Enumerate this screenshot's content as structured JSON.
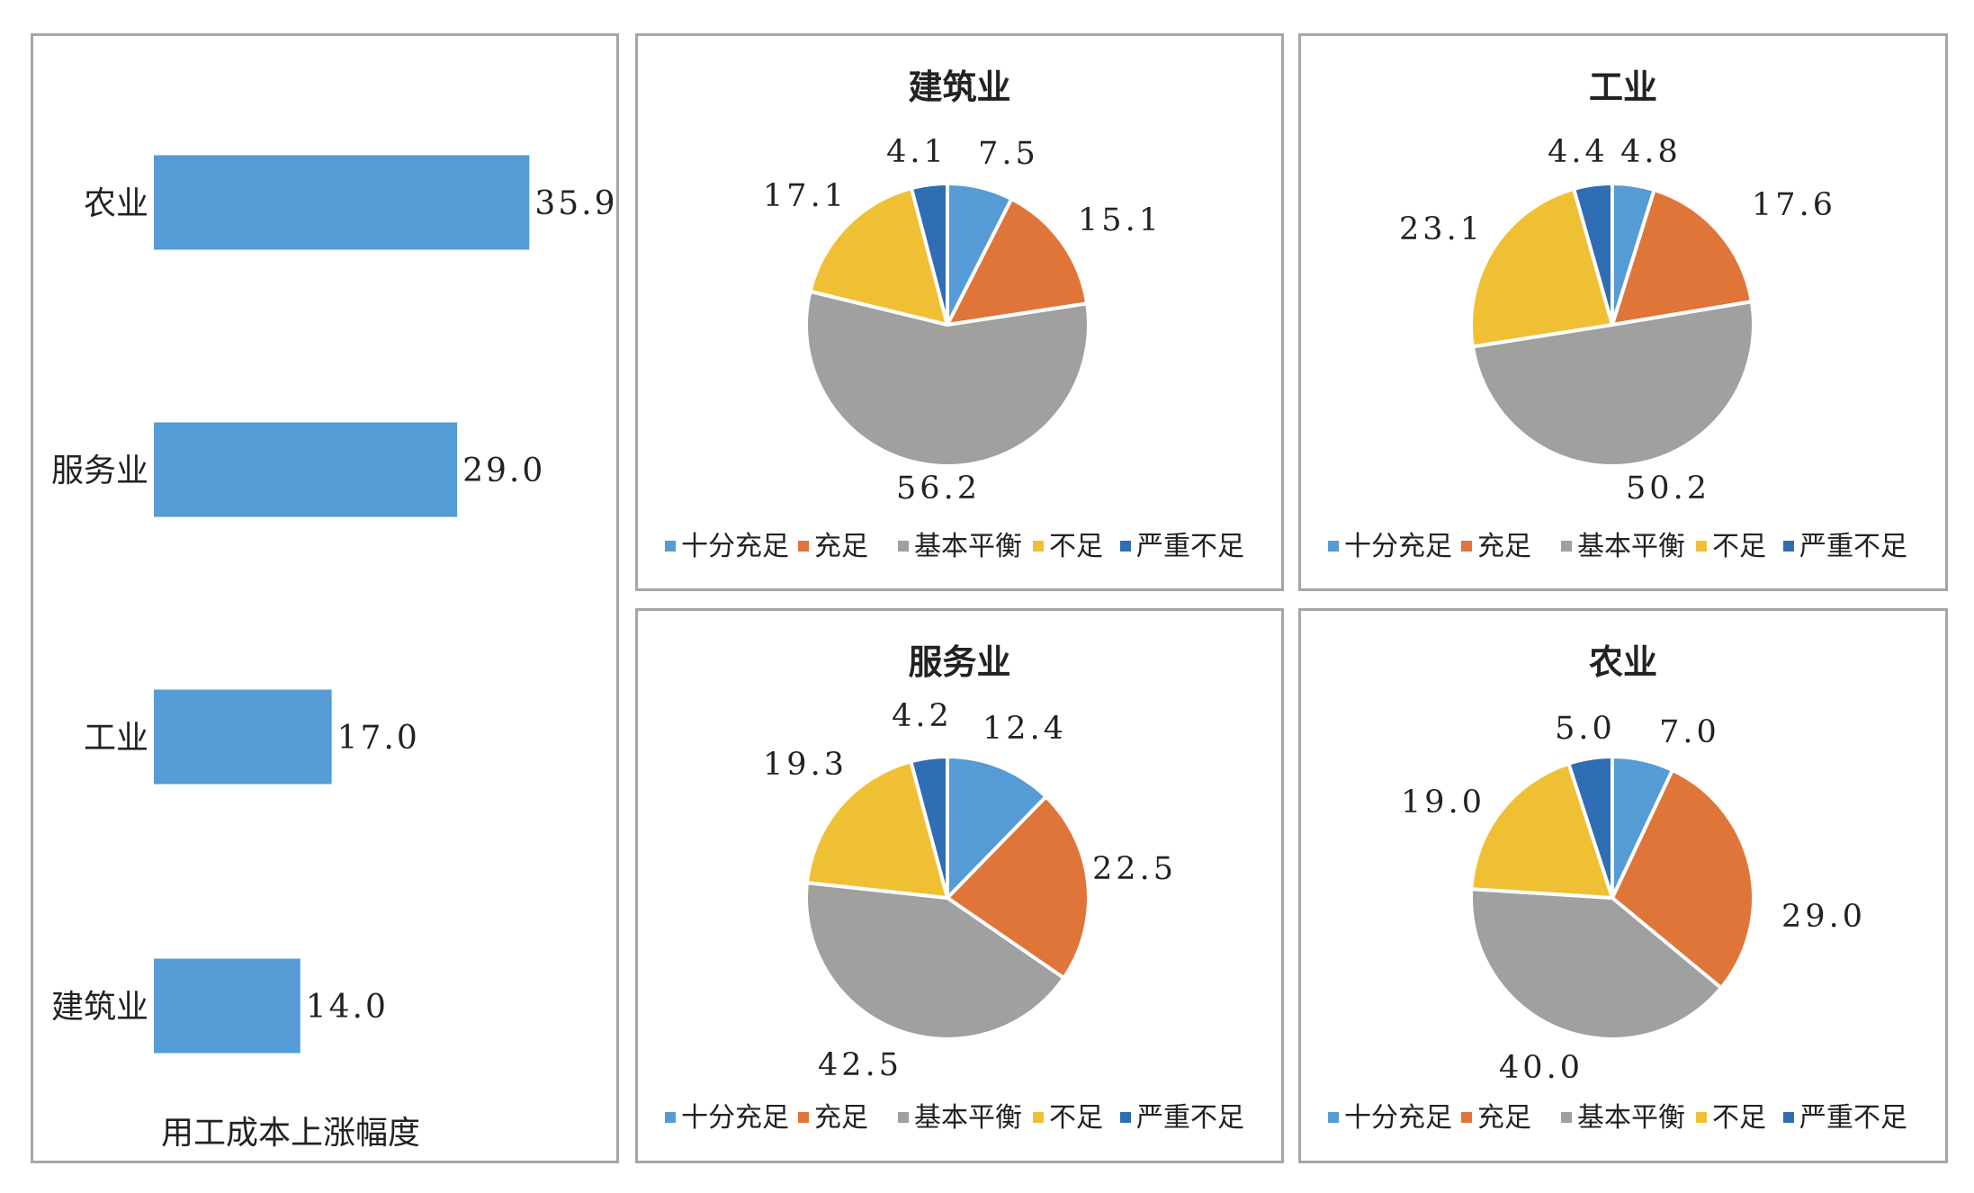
{
  "colors": {
    "bar": "#559bd5",
    "legend": [
      "#559bd5",
      "#e0753a",
      "#a0a0a0",
      "#f0c034",
      "#2f6db4"
    ]
  },
  "chart_data": [
    {
      "type": "bar",
      "orientation": "horizontal",
      "title": "",
      "xlabel": "用工成本上涨幅度",
      "ylabel": "",
      "categories": [
        "农业",
        "服务业",
        "工业",
        "建筑业"
      ],
      "values": [
        35.9,
        29.0,
        17.0,
        14.0
      ],
      "value_labels": [
        "35.9",
        "29.0",
        "17.0",
        "14.0"
      ],
      "xlim": [
        0,
        40
      ]
    },
    {
      "type": "pie",
      "title": "建筑业",
      "categories": [
        "十分充足",
        "充足",
        "基本平衡",
        "不足",
        "严重不足"
      ],
      "values": [
        7.5,
        15.1,
        56.2,
        17.1,
        4.1
      ],
      "value_labels": [
        "7.5",
        "15.1",
        "56.2",
        "17.1",
        "4.1"
      ],
      "legend": "bottom"
    },
    {
      "type": "pie",
      "title": "工业",
      "categories": [
        "十分充足",
        "充足",
        "基本平衡",
        "不足",
        "严重不足"
      ],
      "values": [
        4.8,
        17.6,
        50.2,
        23.1,
        4.4
      ],
      "value_labels": [
        "4.8",
        "17.6",
        "50.2",
        "23.1",
        "4.4"
      ],
      "legend": "bottom"
    },
    {
      "type": "pie",
      "title": "服务业",
      "categories": [
        "十分充足",
        "充足",
        "基本平衡",
        "不足",
        "严重不足"
      ],
      "values": [
        12.4,
        22.5,
        42.5,
        19.3,
        4.2
      ],
      "value_labels": [
        "12.4",
        "22.5",
        "42.5",
        "19.3",
        "4.2"
      ],
      "legend": "bottom"
    },
    {
      "type": "pie",
      "title": "农业",
      "categories": [
        "十分充足",
        "充足",
        "基本平衡",
        "不足",
        "严重不足"
      ],
      "values": [
        7.0,
        29.0,
        40.0,
        19.0,
        5.0
      ],
      "value_labels": [
        "7.0",
        "29.0",
        "40.0",
        "19.0",
        "5.0"
      ],
      "legend": "bottom"
    }
  ]
}
